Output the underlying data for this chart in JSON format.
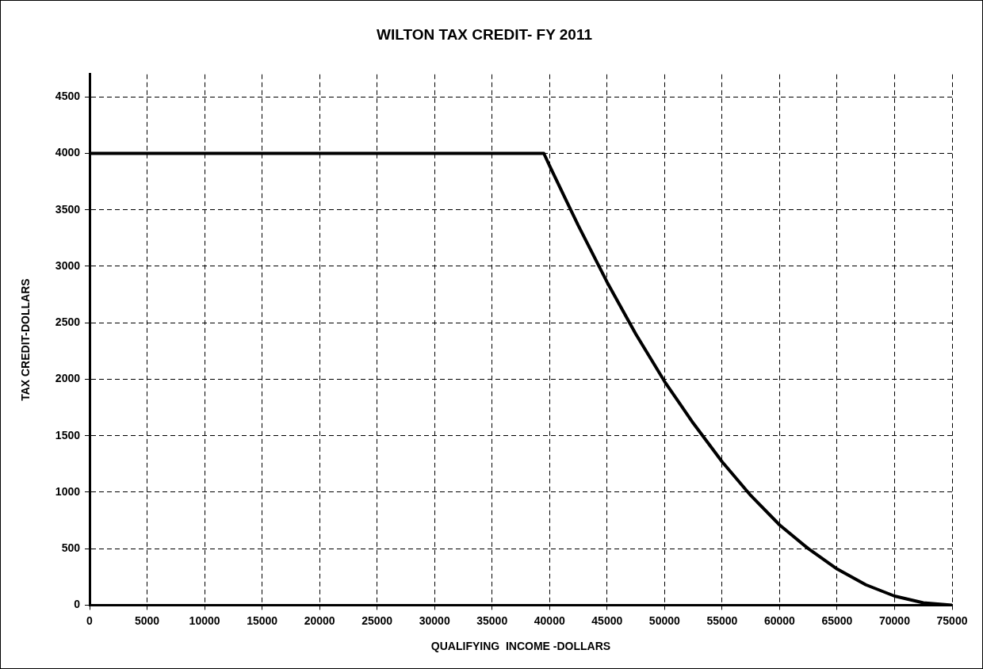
{
  "chart_data": {
    "type": "line",
    "title": "WILTON TAX CREDIT- FY 2011",
    "xlabel": "QUALIFYING  INCOME -DOLLARS",
    "ylabel": "TAX CREDIT-DOLLARS",
    "x": [
      0,
      39500,
      40000,
      42500,
      45000,
      47500,
      50000,
      52500,
      55000,
      57500,
      60000,
      62500,
      65000,
      67500,
      70000,
      72500,
      75000
    ],
    "series": [
      {
        "color": "#000000",
        "values": [
          4000,
          4000,
          3890,
          3360,
          2860,
          2400,
          1980,
          1610,
          1270,
          970,
          710,
          500,
          320,
          180,
          80,
          20,
          0
        ]
      }
    ],
    "xlim": [
      0,
      75000
    ],
    "xticks": [
      0,
      5000,
      10000,
      15000,
      20000,
      25000,
      30000,
      35000,
      40000,
      45000,
      50000,
      55000,
      60000,
      65000,
      70000,
      75000
    ],
    "ylim": [
      0,
      4700
    ],
    "yticks": [
      0,
      500,
      1000,
      1500,
      2000,
      2500,
      3000,
      3500,
      4000,
      4500
    ],
    "grid": true,
    "legend": false,
    "marker": "none",
    "line_style": "solid"
  }
}
